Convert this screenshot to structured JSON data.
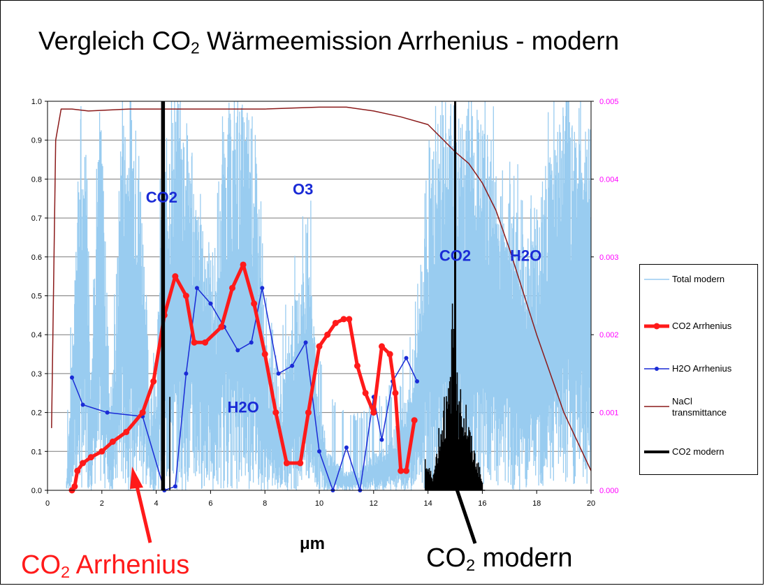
{
  "title": "Vergleich CO₂ Wärmeemission Arrhenius - modern",
  "title_parts": {
    "before": "Vergleich CO",
    "sub": "2",
    "after": " Wärmeemission Arrhenius - modern"
  },
  "annotations": {
    "arrhenius": {
      "main": "CO",
      "sub": "2",
      "rest": " Arrhenius",
      "color": "#ff1a1a"
    },
    "modern": {
      "main": "CO",
      "sub": "2",
      "rest": " modern",
      "color": "#000000"
    }
  },
  "band_labels": [
    {
      "text": "CO2",
      "x": 4.2,
      "y": 0.74
    },
    {
      "text": "O3",
      "x": 9.4,
      "y": 0.76
    },
    {
      "text": "CO2",
      "x": 15.0,
      "y": 0.59
    },
    {
      "text": "H2O",
      "x": 17.6,
      "y": 0.59
    },
    {
      "text": "H2O",
      "x": 7.2,
      "y": 0.2
    }
  ],
  "chart_data": {
    "type": "line",
    "xlabel": "μm",
    "ylabel": "",
    "xlim": [
      0,
      20
    ],
    "ylim": [
      0,
      1.0
    ],
    "y2lim": [
      0,
      0.005
    ],
    "xticks": [
      "0",
      "2",
      "4",
      "6",
      "8",
      "10",
      "12",
      "14",
      "16",
      "18",
      "20"
    ],
    "yticks": [
      "0.0",
      "0.1",
      "0.2",
      "0.3",
      "0.4",
      "0.5",
      "0.6",
      "0.7",
      "0.8",
      "0.9",
      "1.0"
    ],
    "y2ticks": [
      "0.000",
      "0.001",
      "0.002",
      "0.003",
      "0.004",
      "0.005"
    ],
    "grid": true,
    "legend_position": "right",
    "series": [
      {
        "name": "Total modern",
        "color": "#99ccf0",
        "axis": "left",
        "style": "noisy-band",
        "envelope": [
          [
            0.7,
            0.03
          ],
          [
            0.9,
            0.35
          ],
          [
            1.1,
            0.8
          ],
          [
            1.4,
            0.95
          ],
          [
            1.6,
            0.3
          ],
          [
            1.8,
            0.85
          ],
          [
            2.0,
            0.95
          ],
          [
            2.3,
            0.25
          ],
          [
            2.5,
            0.4
          ],
          [
            2.7,
            0.98
          ],
          [
            3.0,
            1.0
          ],
          [
            3.3,
            0.98
          ],
          [
            3.6,
            0.6
          ],
          [
            3.8,
            0.15
          ],
          [
            4.0,
            0.3
          ],
          [
            4.2,
            0.8
          ],
          [
            4.5,
            0.98
          ],
          [
            5.0,
            1.0
          ],
          [
            5.3,
            0.85
          ],
          [
            5.6,
            0.7
          ],
          [
            5.9,
            0.65
          ],
          [
            6.2,
            0.55
          ],
          [
            6.5,
            0.95
          ],
          [
            7.0,
            1.0
          ],
          [
            7.5,
            1.0
          ],
          [
            7.8,
            0.75
          ],
          [
            8.0,
            0.4
          ],
          [
            8.3,
            0.3
          ],
          [
            8.6,
            0.25
          ],
          [
            9.0,
            0.45
          ],
          [
            9.3,
            0.55
          ],
          [
            9.6,
            0.72
          ],
          [
            9.9,
            0.3
          ],
          [
            10.3,
            0.1
          ],
          [
            11.0,
            0.05
          ],
          [
            11.5,
            0.05
          ],
          [
            12.0,
            0.1
          ],
          [
            12.5,
            0.12
          ],
          [
            13.0,
            0.2
          ],
          [
            13.5,
            0.3
          ],
          [
            13.8,
            0.6
          ],
          [
            14.2,
            0.9
          ],
          [
            14.6,
            1.0
          ],
          [
            15.4,
            1.0
          ],
          [
            15.8,
            0.98
          ],
          [
            16.2,
            0.92
          ],
          [
            16.6,
            0.8
          ],
          [
            17.0,
            0.75
          ],
          [
            17.4,
            0.7
          ],
          [
            17.8,
            0.65
          ],
          [
            18.2,
            0.8
          ],
          [
            18.6,
            0.95
          ],
          [
            19.0,
            1.0
          ],
          [
            19.5,
            1.0
          ],
          [
            20.0,
            0.95
          ]
        ]
      },
      {
        "name": "CO2 Arrhenius",
        "color": "#ff1a1a",
        "axis": "left",
        "x": [
          0.9,
          1.0,
          1.1,
          1.3,
          1.6,
          2.0,
          2.4,
          2.9,
          3.5,
          3.9,
          4.3,
          4.7,
          5.1,
          5.4,
          5.8,
          6.4,
          6.8,
          7.2,
          7.6,
          8.0,
          8.4,
          8.8,
          9.3,
          9.6,
          10.0,
          10.3,
          10.6,
          10.9,
          11.1,
          11.4,
          11.7,
          12.0,
          12.3,
          12.6,
          12.8,
          13.0,
          13.2,
          13.5
        ],
        "y": [
          0.0,
          0.01,
          0.05,
          0.07,
          0.085,
          0.1,
          0.125,
          0.15,
          0.2,
          0.28,
          0.45,
          0.55,
          0.5,
          0.38,
          0.38,
          0.42,
          0.52,
          0.58,
          0.48,
          0.35,
          0.2,
          0.07,
          0.07,
          0.2,
          0.37,
          0.4,
          0.43,
          0.44,
          0.44,
          0.32,
          0.25,
          0.2,
          0.37,
          0.35,
          0.25,
          0.05,
          0.05,
          0.18
        ]
      },
      {
        "name": "H2O Arrhenius",
        "color": "#1a2bd6",
        "axis": "left",
        "x": [
          0.9,
          1.3,
          2.2,
          3.5,
          4.3,
          4.7,
          5.1,
          5.5,
          6.0,
          6.5,
          7.0,
          7.5,
          7.9,
          8.5,
          9.0,
          9.5,
          10.0,
          10.5,
          11.0,
          11.5,
          12.0,
          12.3,
          12.7,
          13.2,
          13.6
        ],
        "y": [
          0.29,
          0.22,
          0.2,
          0.19,
          0.0,
          0.01,
          0.3,
          0.52,
          0.48,
          0.42,
          0.36,
          0.38,
          0.52,
          0.3,
          0.32,
          0.38,
          0.1,
          0.0,
          0.11,
          0.0,
          0.24,
          0.13,
          0.28,
          0.34,
          0.28
        ]
      },
      {
        "name": "NaCl transmittance",
        "color": "#8b1a1a",
        "axis": "left",
        "x": [
          0.15,
          0.3,
          0.5,
          0.6,
          0.9,
          1.5,
          3.0,
          5.0,
          8.0,
          10.0,
          11.0,
          12.0,
          13.0,
          14.0,
          15.0,
          15.5,
          16.0,
          16.5,
          17.0,
          18.0,
          19.0,
          20.0
        ],
        "y": [
          0.16,
          0.9,
          0.98,
          0.98,
          0.98,
          0.975,
          0.98,
          0.98,
          0.98,
          0.985,
          0.985,
          0.975,
          0.96,
          0.94,
          0.87,
          0.84,
          0.79,
          0.72,
          0.62,
          0.4,
          0.2,
          0.05
        ]
      },
      {
        "name": "CO2 modern",
        "color": "#000000",
        "axis": "right",
        "style": "spectral-lines",
        "x": [
          4.2,
          4.25,
          4.3,
          4.5,
          13.9,
          14.2,
          14.4,
          14.6,
          14.8,
          14.9,
          15.0,
          15.1,
          15.2,
          15.4,
          15.6,
          15.9,
          16.0
        ],
        "y": [
          0.005,
          0.005,
          0.005,
          0.0012,
          0.0004,
          0.0002,
          0.0008,
          0.0012,
          0.0014,
          0.0024,
          0.0028,
          0.0011,
          0.0013,
          0.0011,
          0.0007,
          0.0003,
          0.0001
        ]
      }
    ]
  }
}
